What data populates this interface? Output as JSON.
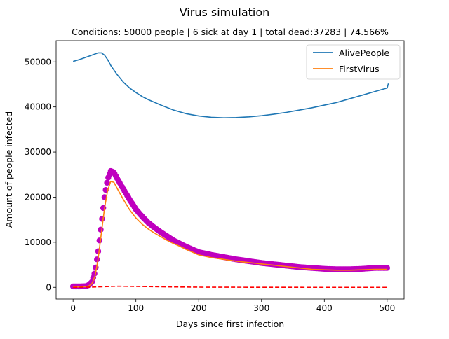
{
  "chart_data": {
    "type": "line",
    "title": "Virus simulation",
    "subtitle": "Conditions: 50000 people | 6 sick at day 1 | total dead:37283 | 74.566%",
    "xlabel": "Days since first infection",
    "ylabel": "Amount of people infected",
    "xlim": [
      -27,
      527
    ],
    "ylim": [
      -2600,
      54700
    ],
    "xticks": [
      0,
      100,
      200,
      300,
      400,
      500
    ],
    "yticks": [
      0,
      10000,
      20000,
      30000,
      40000,
      50000
    ],
    "grid": false,
    "legend_position": "upper right",
    "colors": {
      "alive": "#1f77b4",
      "virus": "#ff7f0e",
      "markers": "#bf00bf",
      "dashed": "#ff0000"
    },
    "series": [
      {
        "name": "AlivePeople",
        "style": "solid",
        "points": [
          [
            0,
            50100
          ],
          [
            10,
            50500
          ],
          [
            20,
            51000
          ],
          [
            30,
            51500
          ],
          [
            40,
            52000
          ],
          [
            45,
            52000
          ],
          [
            50,
            51500
          ],
          [
            55,
            50500
          ],
          [
            60,
            49200
          ],
          [
            70,
            47200
          ],
          [
            80,
            45500
          ],
          [
            90,
            44200
          ],
          [
            100,
            43200
          ],
          [
            110,
            42300
          ],
          [
            120,
            41600
          ],
          [
            140,
            40400
          ],
          [
            160,
            39300
          ],
          [
            180,
            38500
          ],
          [
            200,
            38000
          ],
          [
            220,
            37700
          ],
          [
            240,
            37600
          ],
          [
            260,
            37650
          ],
          [
            280,
            37800
          ],
          [
            300,
            38050
          ],
          [
            320,
            38400
          ],
          [
            340,
            38800
          ],
          [
            360,
            39300
          ],
          [
            380,
            39800
          ],
          [
            400,
            40400
          ],
          [
            420,
            41000
          ],
          [
            440,
            41800
          ],
          [
            460,
            42600
          ],
          [
            480,
            43400
          ],
          [
            500,
            44200
          ],
          [
            502,
            45200
          ]
        ]
      },
      {
        "name": "FirstVirus",
        "style": "solid",
        "points": [
          [
            0,
            100
          ],
          [
            10,
            100
          ],
          [
            20,
            150
          ],
          [
            25,
            300
          ],
          [
            30,
            800
          ],
          [
            35,
            2500
          ],
          [
            40,
            6500
          ],
          [
            45,
            12000
          ],
          [
            50,
            17500
          ],
          [
            55,
            21500
          ],
          [
            60,
            23500
          ],
          [
            65,
            23300
          ],
          [
            70,
            22000
          ],
          [
            80,
            19500
          ],
          [
            90,
            17200
          ],
          [
            100,
            15400
          ],
          [
            110,
            14000
          ],
          [
            120,
            12900
          ],
          [
            130,
            12000
          ],
          [
            140,
            11200
          ],
          [
            150,
            10400
          ],
          [
            160,
            9700
          ],
          [
            170,
            9100
          ],
          [
            180,
            8400
          ],
          [
            190,
            7800
          ],
          [
            200,
            7200
          ],
          [
            220,
            6600
          ],
          [
            240,
            6200
          ],
          [
            260,
            5800
          ],
          [
            280,
            5500
          ],
          [
            300,
            5200
          ],
          [
            320,
            4900
          ],
          [
            340,
            4600
          ],
          [
            360,
            4300
          ],
          [
            380,
            4000
          ],
          [
            400,
            3900
          ],
          [
            420,
            3800
          ],
          [
            440,
            3800
          ],
          [
            460,
            3900
          ],
          [
            480,
            4000
          ],
          [
            500,
            4000
          ]
        ]
      },
      {
        "name": "",
        "style": "markers",
        "points": [
          [
            0,
            200
          ],
          [
            10,
            200
          ],
          [
            20,
            250
          ],
          [
            25,
            500
          ],
          [
            30,
            1200
          ],
          [
            35,
            3500
          ],
          [
            40,
            8000
          ],
          [
            45,
            14000
          ],
          [
            50,
            20000
          ],
          [
            55,
            24000
          ],
          [
            60,
            25800
          ],
          [
            65,
            25500
          ],
          [
            70,
            24200
          ],
          [
            80,
            21800
          ],
          [
            90,
            19500
          ],
          [
            100,
            17300
          ],
          [
            110,
            15700
          ],
          [
            120,
            14300
          ],
          [
            130,
            13200
          ],
          [
            140,
            12200
          ],
          [
            150,
            11300
          ],
          [
            160,
            10400
          ],
          [
            170,
            9700
          ],
          [
            180,
            9000
          ],
          [
            190,
            8400
          ],
          [
            200,
            7800
          ],
          [
            220,
            7200
          ],
          [
            240,
            6700
          ],
          [
            260,
            6200
          ],
          [
            280,
            5800
          ],
          [
            300,
            5400
          ],
          [
            320,
            5100
          ],
          [
            340,
            4800
          ],
          [
            360,
            4500
          ],
          [
            380,
            4300
          ],
          [
            400,
            4100
          ],
          [
            420,
            4000
          ],
          [
            440,
            4000
          ],
          [
            460,
            4100
          ],
          [
            480,
            4300
          ],
          [
            500,
            4300
          ]
        ]
      },
      {
        "name": "",
        "style": "dashed",
        "points": [
          [
            0,
            0
          ],
          [
            30,
            50
          ],
          [
            50,
            150
          ],
          [
            70,
            250
          ],
          [
            100,
            200
          ],
          [
            150,
            100
          ],
          [
            200,
            40
          ],
          [
            300,
            10
          ],
          [
            400,
            0
          ],
          [
            500,
            0
          ]
        ]
      }
    ]
  }
}
